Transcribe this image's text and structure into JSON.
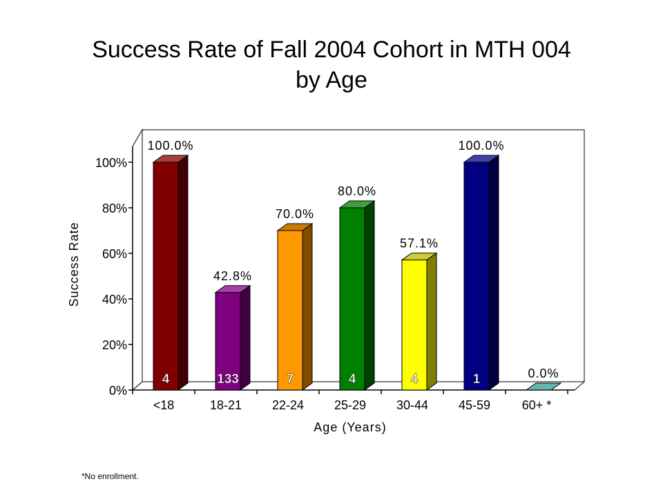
{
  "title_lines": [
    "Success Rate of Fall 2004 Cohort in MTH 004",
    "by Age"
  ],
  "footnote": "*No enrollment.",
  "chart_data": {
    "type": "bar",
    "title": "Success Rate of Fall 2004 Cohort in MTH 004 by Age",
    "xlabel": "Age (Years)",
    "ylabel": "Success Rate",
    "ylim": [
      0,
      100
    ],
    "yticks": [
      "0%",
      "20%",
      "40%",
      "60%",
      "80%",
      "100%"
    ],
    "categories": [
      "<18",
      "18-21",
      "22-24",
      "25-29",
      "30-44",
      "45-59",
      "60+ *"
    ],
    "values": [
      100.0,
      42.8,
      70.0,
      80.0,
      57.1,
      100.0,
      0.0
    ],
    "value_labels": [
      "100.0%",
      "42.8%",
      "70.0%",
      "80.0%",
      "57.1%",
      "100.0%",
      "0.0%"
    ],
    "counts": [
      "4",
      "133",
      "7",
      "4",
      "4",
      "1",
      ""
    ],
    "colors": [
      "#800000",
      "#800080",
      "#FF9900",
      "#008000",
      "#FFFF00",
      "#000080",
      "#339999"
    ],
    "side_colors": [
      "#400000",
      "#400040",
      "#804C00",
      "#004000",
      "#808000",
      "#000040",
      "#1A4D4D"
    ],
    "top_colors": [
      "#A64040",
      "#A640A6",
      "#CC7A00",
      "#40A040",
      "#CCCC33",
      "#4040A6",
      "#66B3B3"
    ],
    "grid": false,
    "legend": "none",
    "style": "3d"
  }
}
